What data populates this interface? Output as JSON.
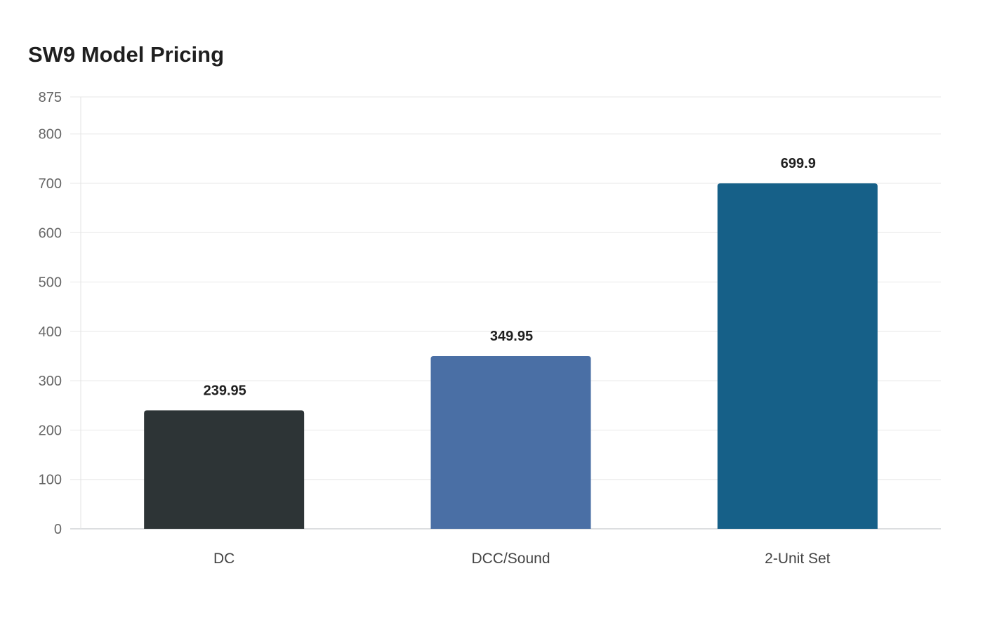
{
  "chart_data": {
    "type": "bar",
    "title": "SW9 Model Pricing",
    "xlabel": "",
    "ylabel": "",
    "categories": [
      "DC",
      "DCC/Sound",
      "2-Unit Set"
    ],
    "values": [
      239.95,
      349.95,
      699.9
    ],
    "data_labels": [
      "239.95",
      "349.95",
      "699.9"
    ],
    "colors": [
      "#2d3436",
      "#4a6fa5",
      "#166088"
    ],
    "ylim": [
      0,
      875
    ],
    "yticks": [
      0,
      100,
      200,
      300,
      400,
      500,
      600,
      700,
      800,
      875
    ],
    "grid": true,
    "legend": "none"
  }
}
